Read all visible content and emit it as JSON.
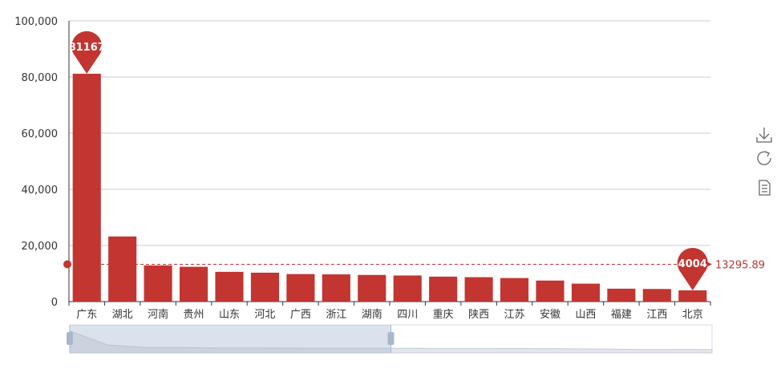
{
  "chart_data": {
    "type": "bar",
    "categories": [
      "广东",
      "湖北",
      "河南",
      "贵州",
      "山东",
      "河北",
      "广西",
      "浙江",
      "湖南",
      "四川",
      "重庆",
      "陕西",
      "江苏",
      "安徽",
      "山西",
      "福建",
      "江西",
      "北京"
    ],
    "values": [
      81167,
      23200,
      12900,
      12400,
      10600,
      10300,
      9800,
      9700,
      9500,
      9300,
      8900,
      8700,
      8400,
      7500,
      6400,
      4600,
      4500,
      4004
    ],
    "ylim": [
      0,
      100000
    ],
    "yticks": [
      "0",
      "20,000",
      "40,000",
      "60,000",
      "80,000",
      "100,000"
    ],
    "grid": true,
    "mark_points": [
      {
        "label": "81167",
        "category": "广东"
      },
      {
        "label": "4004",
        "category": "北京"
      }
    ],
    "mark_line": {
      "value": 13295.89,
      "label": "13295.89"
    },
    "data_zoom": {
      "start_percent": 0,
      "end_percent": 50
    },
    "colors": {
      "bar": "#c23531",
      "grid": "#cccccc",
      "axis": "#333333"
    }
  },
  "toolbox": {
    "icons": [
      "download-icon",
      "refresh-icon",
      "data-view-icon"
    ]
  }
}
